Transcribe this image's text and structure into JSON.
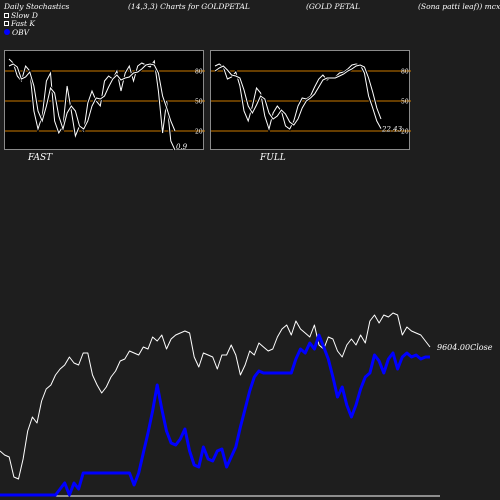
{
  "header": {
    "left": "Daily Stochastics",
    "center": "(14,3,3) Charts for GOLDPETAL",
    "right": "(GOLD PETAL",
    "far_right": "(Sona  patti  leaf)) mcx"
  },
  "legend": {
    "slow_d": "Slow  D",
    "fast_k": "Fast K",
    "obv": "OBV"
  },
  "colors": {
    "background": "#1e1e1e",
    "panel_bg": "#000000",
    "grid_line": "#cc7a00",
    "price_line": "#ffffff",
    "obv_line": "#0000ff"
  },
  "chart_data": [
    {
      "type": "line",
      "panel": "FAST",
      "title": "FAST",
      "ylim": [
        0,
        100
      ],
      "y_ticks": [
        "80",
        "50",
        "20"
      ],
      "y_tick_values": [
        80,
        50,
        20
      ],
      "last_value_label": "0.9",
      "series": [
        {
          "values": [
            92,
            88,
            75,
            70,
            85,
            80,
            40,
            22,
            35,
            70,
            78,
            30,
            18,
            25,
            65,
            40,
            15,
            25,
            20,
            48,
            60,
            50,
            45,
            70,
            75,
            72,
            80,
            60,
            78,
            85,
            70,
            85,
            88,
            86,
            84,
            90,
            60,
            18,
            50,
            10,
            0.9
          ]
        },
        {
          "values": [
            85,
            87,
            84,
            72,
            74,
            79,
            65,
            40,
            30,
            45,
            63,
            58,
            35,
            22,
            38,
            45,
            40,
            25,
            22,
            30,
            45,
            53,
            52,
            55,
            64,
            72,
            76,
            71,
            73,
            74,
            78,
            79,
            82,
            86,
            87,
            86,
            78,
            55,
            43,
            30,
            20
          ]
        }
      ]
    },
    {
      "type": "line",
      "panel": "FULL",
      "title": "FULL",
      "ylim": [
        0,
        100
      ],
      "y_ticks": [
        "80",
        "50",
        "20"
      ],
      "y_tick_values": [
        80,
        50,
        20
      ],
      "last_value_label": "22.43",
      "series": [
        {
          "values": [
            85,
            87,
            84,
            72,
            74,
            79,
            65,
            40,
            30,
            45,
            63,
            58,
            35,
            22,
            38,
            45,
            40,
            25,
            22,
            30,
            45,
            53,
            52,
            55,
            64,
            72,
            76,
            71,
            73,
            74,
            78,
            79,
            82,
            86,
            87,
            86,
            78,
            55,
            43,
            30,
            22.43
          ]
        },
        {
          "values": [
            80,
            83,
            85,
            81,
            76,
            75,
            73,
            61,
            45,
            38,
            46,
            55,
            52,
            38,
            32,
            35,
            41,
            37,
            29,
            26,
            32,
            43,
            50,
            53,
            57,
            64,
            71,
            73,
            73,
            73,
            75,
            77,
            80,
            82,
            85,
            86,
            84,
            73,
            59,
            43,
            32
          ]
        }
      ]
    },
    {
      "type": "line",
      "panel": "price-obv",
      "last_value_label": "9604.00",
      "last_value_suffix": "Close",
      "series": [
        {
          "name": "Price",
          "values": [
            0.22,
            0.2,
            0.19,
            0.09,
            0.08,
            0.18,
            0.32,
            0.39,
            0.36,
            0.47,
            0.53,
            0.55,
            0.6,
            0.63,
            0.65,
            0.69,
            0.66,
            0.65,
            0.71,
            0.71,
            0.6,
            0.55,
            0.51,
            0.54,
            0.59,
            0.62,
            0.67,
            0.68,
            0.72,
            0.71,
            0.7,
            0.74,
            0.73,
            0.79,
            0.77,
            0.8,
            0.73,
            0.78,
            0.8,
            0.81,
            0.82,
            0.81,
            0.69,
            0.64,
            0.71,
            0.7,
            0.69,
            0.63,
            0.7,
            0.7,
            0.75,
            0.7,
            0.6,
            0.65,
            0.72,
            0.7,
            0.76,
            0.74,
            0.72,
            0.73,
            0.79,
            0.83,
            0.85,
            0.8,
            0.87,
            0.83,
            0.81,
            0.79,
            0.85,
            0.75,
            0.73,
            0.79,
            0.78,
            0.72,
            0.69,
            0.75,
            0.78,
            0.75,
            0.8,
            0.76,
            0.87,
            0.9,
            0.86,
            0.9,
            0.89,
            0.91,
            0.9,
            0.8,
            0.84,
            0.82,
            0.81,
            0.8,
            0.77,
            0.74
          ]
        },
        {
          "name": "OBV",
          "values": [
            0.0,
            0.0,
            0.0,
            0.0,
            0.0,
            0.0,
            0.0,
            0.0,
            0.0,
            0.0,
            0.0,
            0.0,
            0.0,
            0.03,
            0.06,
            0.0,
            0.06,
            0.03,
            0.11,
            0.11,
            0.11,
            0.11,
            0.11,
            0.11,
            0.11,
            0.11,
            0.11,
            0.11,
            0.11,
            0.05,
            0.11,
            0.21,
            0.31,
            0.42,
            0.55,
            0.43,
            0.32,
            0.26,
            0.25,
            0.28,
            0.33,
            0.22,
            0.15,
            0.14,
            0.24,
            0.18,
            0.17,
            0.22,
            0.23,
            0.14,
            0.19,
            0.24,
            0.34,
            0.43,
            0.52,
            0.59,
            0.62,
            0.61,
            0.61,
            0.61,
            0.61,
            0.61,
            0.61,
            0.61,
            0.68,
            0.73,
            0.71,
            0.76,
            0.73,
            0.8,
            0.74,
            0.68,
            0.59,
            0.49,
            0.54,
            0.45,
            0.39,
            0.45,
            0.53,
            0.59,
            0.61,
            0.7,
            0.67,
            0.61,
            0.68,
            0.71,
            0.63,
            0.69,
            0.71,
            0.69,
            0.7,
            0.68,
            0.69,
            0.69
          ]
        }
      ]
    }
  ]
}
